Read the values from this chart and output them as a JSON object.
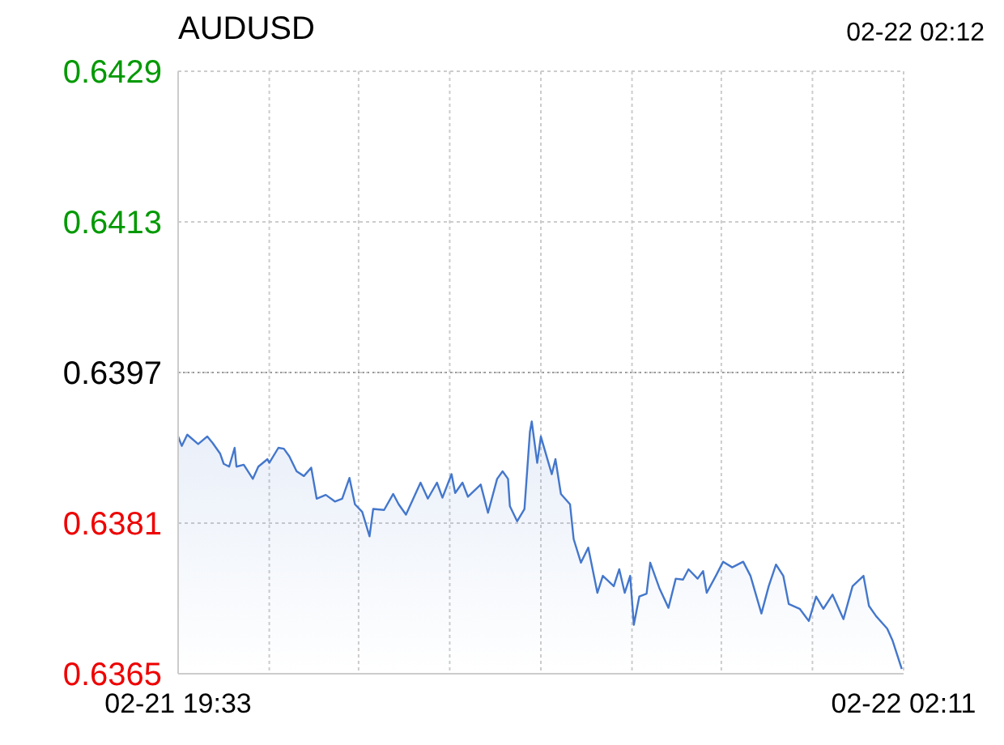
{
  "chart_data": {
    "type": "area",
    "title": "AUDUSD",
    "annotations": [
      "02-22 02:12"
    ],
    "x": [
      "--02-21T19:33",
      "--02-21T19:35",
      "--02-21T19:38",
      "--02-21T19:44",
      "--02-21T19:49",
      "--02-21T19:52",
      "--02-21T19:56",
      "--02-21T19:58",
      "--02-21T20:01",
      "--02-21T20:04",
      "--02-21T20:05",
      "--02-21T20:09",
      "--02-21T20:14",
      "--02-21T20:17",
      "--02-21T20:22",
      "--02-21T20:23",
      "--02-21T20:28",
      "--02-21T20:31",
      "--02-21T20:34",
      "--02-21T20:38",
      "--02-21T20:42",
      "--02-21T20:46",
      "--02-21T20:49",
      "--02-21T20:54",
      "--02-21T20:59",
      "--02-21T21:03",
      "--02-21T21:07",
      "--02-21T21:10",
      "--02-21T21:14",
      "--02-21T21:18",
      "--02-21T21:20",
      "--02-21T21:26",
      "--02-21T21:31",
      "--02-21T21:34",
      "--02-21T21:38",
      "--02-21T21:42",
      "--02-21T21:46",
      "--02-21T21:50",
      "--02-21T21:55",
      "--02-21T21:58",
      "--02-21T22:03",
      "--02-21T22:05",
      "--02-21T22:09",
      "--02-21T22:12",
      "--02-21T22:19",
      "--02-21T22:23",
      "--02-21T22:28",
      "--02-21T22:31",
      "--02-21T22:34",
      "--02-21T22:35",
      "--02-21T22:39",
      "--02-21T22:43",
      "--02-21T22:46",
      "--02-21T22:47",
      "--02-21T22:50",
      "--02-21T22:52",
      "--02-21T22:58",
      "--02-21T23:00",
      "--02-21T23:03",
      "--02-21T23:08",
      "--02-21T23:10",
      "--02-21T23:14",
      "--02-21T23:18",
      "--02-21T23:23",
      "--02-21T23:26",
      "--02-21T23:32",
      "--02-21T23:35",
      "--02-21T23:38",
      "--02-21T23:41",
      "--02-21T23:43",
      "--02-21T23:46",
      "--02-21T23:50",
      "--02-21T23:52",
      "--02-21T23:57",
      "--02-22T00:02",
      "--02-22T00:06",
      "--02-22T00:10",
      "--02-22T00:13",
      "--02-22T00:18",
      "--02-22T00:21",
      "--02-22T00:23",
      "--02-22T00:28",
      "--02-22T00:32",
      "--02-22T00:37",
      "--02-22T00:43",
      "--02-22T00:47",
      "--02-22T00:53",
      "--02-22T00:57",
      "--02-22T01:01",
      "--02-22T01:05",
      "--02-22T01:08",
      "--02-22T01:14",
      "--02-22T01:19",
      "--02-22T01:23",
      "--02-22T01:27",
      "--02-22T01:32",
      "--02-22T01:38",
      "--02-22T01:43",
      "--02-22T01:49",
      "--02-22T01:52",
      "--02-22T01:56",
      "--02-22T02:02",
      "--02-22T02:05",
      "--02-22T02:10"
    ],
    "series": [
      {
        "color": "#4477cc",
        "values": [
          0.63902,
          0.63892,
          0.63904,
          0.63894,
          0.63902,
          0.63895,
          0.63884,
          0.63873,
          0.6387,
          0.6389,
          0.6387,
          0.63872,
          0.63857,
          0.6387,
          0.63878,
          0.63874,
          0.6389,
          0.63889,
          0.63881,
          0.63865,
          0.6386,
          0.63869,
          0.63836,
          0.6384,
          0.63833,
          0.63836,
          0.63858,
          0.6383,
          0.63822,
          0.63796,
          0.63825,
          0.63824,
          0.63841,
          0.6383,
          0.63819,
          0.63836,
          0.63853,
          0.63836,
          0.63853,
          0.63837,
          0.63862,
          0.63842,
          0.63853,
          0.63838,
          0.63851,
          0.63821,
          0.63857,
          0.63865,
          0.63857,
          0.63828,
          0.63812,
          0.63825,
          0.63907,
          0.63918,
          0.63874,
          0.63902,
          0.63862,
          0.63878,
          0.63841,
          0.6383,
          0.63793,
          0.63768,
          0.63784,
          0.63736,
          0.63754,
          0.63743,
          0.63761,
          0.63736,
          0.63754,
          0.63702,
          0.63732,
          0.63735,
          0.63768,
          0.63741,
          0.6372,
          0.63751,
          0.6375,
          0.63761,
          0.63751,
          0.63759,
          0.63736,
          0.63754,
          0.63769,
          0.63763,
          0.63769,
          0.63754,
          0.63714,
          0.63743,
          0.63766,
          0.63754,
          0.63724,
          0.63719,
          0.63706,
          0.63732,
          0.63719,
          0.63734,
          0.63708,
          0.63743,
          0.63754,
          0.63722,
          0.63711,
          0.63698,
          0.63685,
          0.63655
        ]
      }
    ],
    "xlim": [
      "--02-21T19:33",
      "--02-22T02:11"
    ],
    "xticks": [
      {
        "value": "--02-21T19:33",
        "label": "02-21 19:33"
      },
      {
        "value": "--02-21T20:23",
        "label": null
      },
      {
        "value": "--02-21T21:12",
        "label": null
      },
      {
        "value": "--02-21T22:02",
        "label": null
      },
      {
        "value": "--02-21T22:52",
        "label": null
      },
      {
        "value": "--02-21T23:42",
        "label": null
      },
      {
        "value": "--02-22T00:31",
        "label": null
      },
      {
        "value": "--02-22T01:21",
        "label": null
      },
      {
        "value": "--02-22T02:11",
        "label": "02-22 02:11"
      }
    ],
    "ylim": [
      0.6365,
      0.6429
    ],
    "yticks": [
      0.6365,
      0.6381,
      0.6397,
      0.6413,
      0.6429
    ],
    "ref_lines": [
      {
        "axis": "y",
        "value": 0.6397,
        "color": "#999999",
        "line_style": "dotted"
      }
    ],
    "grid": true
  }
}
